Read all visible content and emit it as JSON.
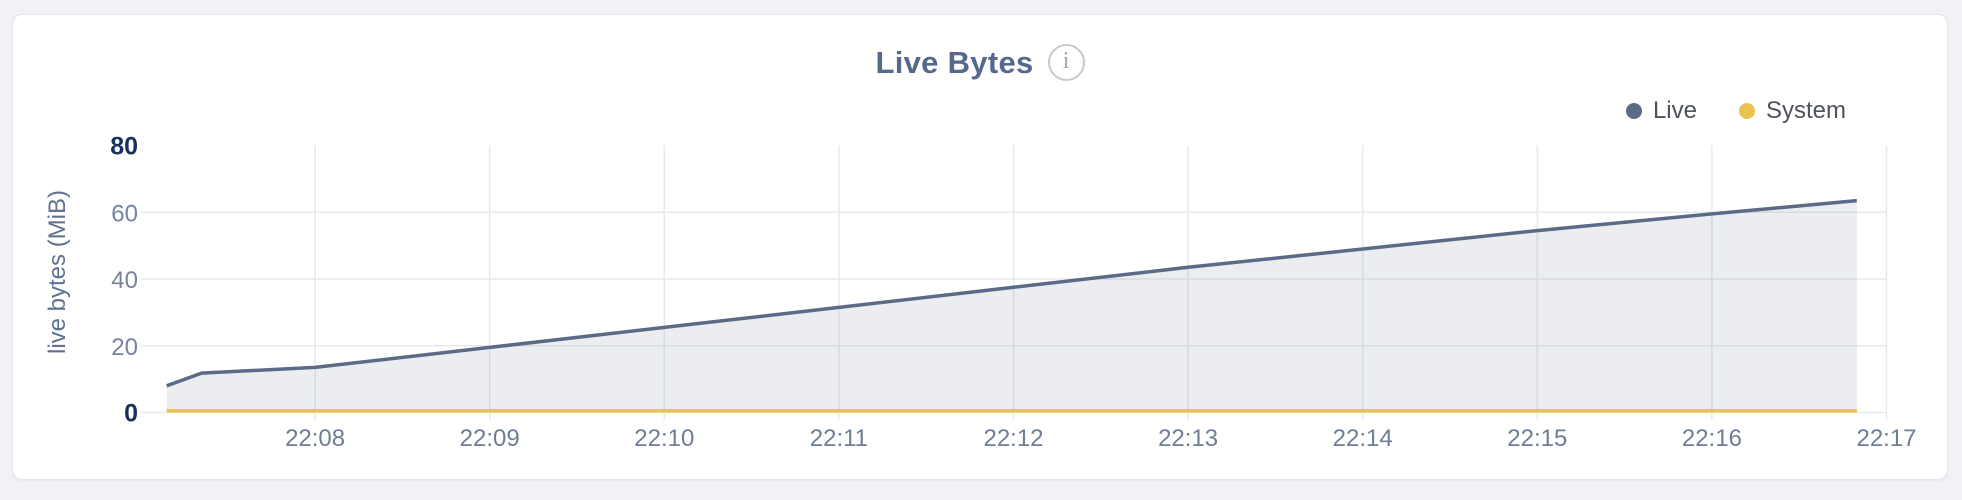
{
  "ui": {
    "info_icon_glyph": "i"
  },
  "chart_data": {
    "type": "area",
    "title": "Live Bytes",
    "xlabel": "",
    "ylabel": "live bytes (MiB)",
    "grid": true,
    "legend_position": "top-right",
    "x_axis": {
      "unit": "time (HH:MM)",
      "range_minutes_after_2200": [
        7,
        17
      ],
      "tick_minutes": [
        8,
        9,
        10,
        11,
        12,
        13,
        14,
        15,
        16,
        17
      ],
      "ticks": [
        "22:08",
        "22:09",
        "22:10",
        "22:11",
        "22:12",
        "22:13",
        "22:14",
        "22:15",
        "22:16",
        "22:17"
      ]
    },
    "y_axis": {
      "unit": "MiB",
      "range": [
        0,
        80
      ],
      "ticks": [
        0,
        20,
        40,
        60,
        80
      ],
      "emphasized_ticks": [
        0,
        80
      ],
      "gridline_values": [
        0,
        20,
        40,
        60
      ]
    },
    "series": [
      {
        "name": "Live",
        "color": "#5b6a86",
        "fill": "rgba(91,106,134,0.12)",
        "points_min_mib": [
          [
            7.15,
            8
          ],
          [
            7.35,
            11.8
          ],
          [
            8,
            13.5
          ],
          [
            9,
            19.5
          ],
          [
            10,
            25.5
          ],
          [
            11,
            31.5
          ],
          [
            12,
            37.5
          ],
          [
            13,
            43.5
          ],
          [
            14,
            49
          ],
          [
            15,
            54.5
          ],
          [
            16,
            59.5
          ],
          [
            16.83,
            63.5
          ]
        ]
      },
      {
        "name": "System",
        "color": "#eac24e",
        "fill": null,
        "points_min_mib": [
          [
            7.15,
            0.5
          ],
          [
            16.83,
            0.5
          ]
        ]
      }
    ]
  }
}
